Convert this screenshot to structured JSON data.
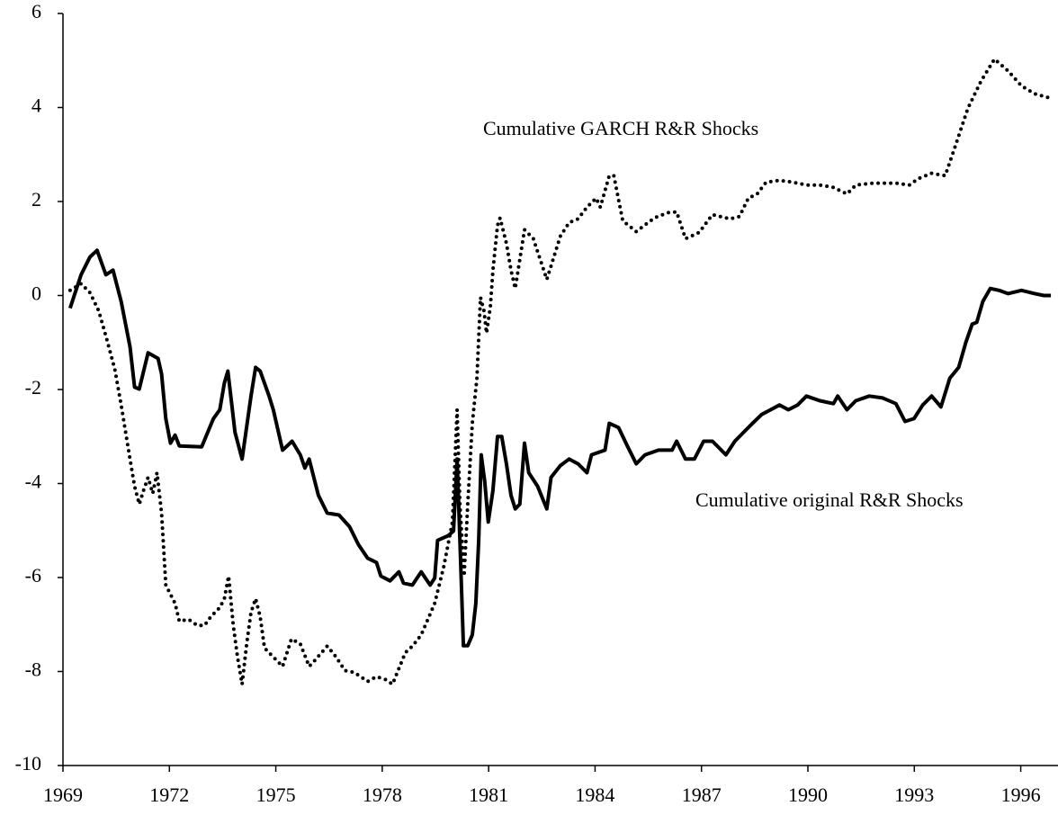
{
  "chart_data": {
    "type": "line",
    "xlim": [
      1969,
      1997
    ],
    "ylim": [
      -10,
      6
    ],
    "xticks": [
      1969,
      1972,
      1975,
      1978,
      1981,
      1984,
      1987,
      1990,
      1993,
      1996
    ],
    "yticks": [
      6,
      4,
      2,
      0,
      -2,
      -4,
      -6,
      -8,
      -10
    ],
    "annotations": [
      "Cumulative GARCH R&R Shocks",
      "Cumulative original R&R Shocks"
    ],
    "series": [
      {
        "name": "Cumulative original R&R Shocks",
        "color": "#000000",
        "style": "solid",
        "x": [
          1969.2,
          1969.51,
          1969.76,
          1969.96,
          1970.21,
          1970.41,
          1970.64,
          1970.89,
          1971.02,
          1971.15,
          1971.4,
          1971.68,
          1971.78,
          1971.9,
          1972.03,
          1972.16,
          1972.28,
          1972.91,
          1973.24,
          1973.42,
          1973.55,
          1973.65,
          1973.85,
          1974.05,
          1974.3,
          1974.43,
          1974.56,
          1974.81,
          1974.93,
          1975.19,
          1975.46,
          1975.69,
          1975.82,
          1975.94,
          1976.2,
          1976.45,
          1976.78,
          1977.08,
          1977.33,
          1977.59,
          1977.84,
          1977.96,
          1978.22,
          1978.47,
          1978.6,
          1978.85,
          1979.1,
          1979.35,
          1979.48,
          1979.56,
          1979.86,
          1980.01,
          1980.11,
          1980.19,
          1980.29,
          1980.41,
          1980.54,
          1980.64,
          1980.72,
          1980.79,
          1980.89,
          1980.99,
          1981.12,
          1981.25,
          1981.37,
          1981.5,
          1981.63,
          1981.75,
          1981.88,
          1982.01,
          1982.13,
          1982.38,
          1982.64,
          1982.76,
          1983.02,
          1983.27,
          1983.52,
          1983.77,
          1983.9,
          1984.28,
          1984.4,
          1984.66,
          1984.91,
          1985.16,
          1985.41,
          1985.79,
          1986.17,
          1986.3,
          1986.55,
          1986.8,
          1987.06,
          1987.31,
          1987.69,
          1987.94,
          1988.19,
          1988.44,
          1988.7,
          1988.95,
          1989.2,
          1989.45,
          1989.71,
          1989.96,
          1990.34,
          1990.72,
          1990.84,
          1991.1,
          1991.35,
          1991.73,
          1992.11,
          1992.48,
          1992.74,
          1992.99,
          1993.24,
          1993.49,
          1993.75,
          1994.0,
          1994.25,
          1994.45,
          1994.63,
          1994.76,
          1994.93,
          1995.14,
          1995.39,
          1995.64,
          1996.02,
          1996.4,
          1996.65,
          1996.85
        ],
        "values": [
          -0.27,
          0.44,
          0.82,
          0.96,
          0.44,
          0.54,
          -0.13,
          -1.09,
          -1.95,
          -1.99,
          -1.22,
          -1.34,
          -1.67,
          -2.62,
          -3.14,
          -2.97,
          -3.2,
          -3.22,
          -2.62,
          -2.43,
          -1.86,
          -1.61,
          -2.91,
          -3.48,
          -2.14,
          -1.53,
          -1.61,
          -2.14,
          -2.43,
          -3.29,
          -3.1,
          -3.39,
          -3.67,
          -3.48,
          -4.25,
          -4.63,
          -4.67,
          -4.92,
          -5.3,
          -5.59,
          -5.68,
          -5.97,
          -6.07,
          -5.88,
          -6.12,
          -6.16,
          -5.88,
          -6.16,
          -6.01,
          -5.21,
          -5.11,
          -5.01,
          -3.48,
          -5.21,
          -7.45,
          -7.45,
          -7.22,
          -6.55,
          -5.21,
          -3.39,
          -3.96,
          -4.82,
          -4.15,
          -3.0,
          -3.0,
          -3.58,
          -4.25,
          -4.54,
          -4.44,
          -3.14,
          -3.77,
          -4.06,
          -4.54,
          -3.87,
          -3.62,
          -3.48,
          -3.58,
          -3.77,
          -3.39,
          -3.29,
          -2.72,
          -2.81,
          -3.2,
          -3.58,
          -3.39,
          -3.29,
          -3.29,
          -3.1,
          -3.48,
          -3.48,
          -3.1,
          -3.1,
          -3.39,
          -3.1,
          -2.91,
          -2.72,
          -2.53,
          -2.43,
          -2.33,
          -2.43,
          -2.33,
          -2.14,
          -2.24,
          -2.3,
          -2.14,
          -2.43,
          -2.24,
          -2.14,
          -2.18,
          -2.3,
          -2.68,
          -2.62,
          -2.33,
          -2.14,
          -2.37,
          -1.76,
          -1.53,
          -1.0,
          -0.61,
          -0.57,
          -0.13,
          0.15,
          0.11,
          0.04,
          0.11,
          0.04,
          0.0,
          0.0
        ]
      },
      {
        "name": "Cumulative GARCH R&R Shocks",
        "color": "#000000",
        "style": "dotted",
        "x": [
          1969.2,
          1969.51,
          1969.76,
          1970.01,
          1970.26,
          1970.46,
          1970.64,
          1970.89,
          1971.02,
          1971.15,
          1971.27,
          1971.4,
          1971.53,
          1971.65,
          1971.78,
          1971.9,
          1972.16,
          1972.28,
          1972.54,
          1972.79,
          1972.99,
          1973.17,
          1973.42,
          1973.55,
          1973.67,
          1973.8,
          1973.92,
          1974.05,
          1974.18,
          1974.3,
          1974.43,
          1974.56,
          1974.68,
          1974.81,
          1975.06,
          1975.19,
          1975.44,
          1975.69,
          1975.94,
          1976.07,
          1976.45,
          1976.7,
          1976.95,
          1977.21,
          1977.59,
          1977.84,
          1978.09,
          1978.29,
          1978.65,
          1978.85,
          1979.1,
          1979.48,
          1979.73,
          1979.98,
          1980.11,
          1980.19,
          1980.31,
          1980.41,
          1980.54,
          1980.67,
          1980.77,
          1980.87,
          1980.94,
          1981.05,
          1981.12,
          1981.25,
          1981.32,
          1981.5,
          1981.63,
          1981.75,
          1982.01,
          1982.26,
          1982.64,
          1983.02,
          1983.27,
          1983.52,
          1983.77,
          1984.03,
          1984.15,
          1984.4,
          1984.53,
          1984.78,
          1985.16,
          1985.67,
          1986.05,
          1986.3,
          1986.55,
          1986.93,
          1987.31,
          1987.81,
          1988.07,
          1988.32,
          1988.57,
          1988.82,
          1989.2,
          1989.58,
          1989.96,
          1990.34,
          1990.72,
          1991.1,
          1991.35,
          1991.85,
          1992.48,
          1992.86,
          1993.12,
          1993.49,
          1993.87,
          1994.13,
          1994.51,
          1994.88,
          1995.26,
          1995.64,
          1996.02,
          1996.4,
          1996.78
        ],
        "values": [
          0.11,
          0.25,
          0.06,
          -0.33,
          -1.0,
          -1.57,
          -2.33,
          -3.48,
          -4.06,
          -4.44,
          -4.15,
          -3.87,
          -4.21,
          -3.77,
          -4.63,
          -6.16,
          -6.55,
          -6.93,
          -6.89,
          -7.02,
          -7.02,
          -6.83,
          -6.64,
          -6.45,
          -5.97,
          -7.02,
          -7.69,
          -8.27,
          -7.41,
          -6.74,
          -6.45,
          -6.83,
          -7.5,
          -7.6,
          -7.79,
          -7.89,
          -7.31,
          -7.41,
          -7.89,
          -7.79,
          -7.46,
          -7.69,
          -7.98,
          -8.02,
          -8.21,
          -8.11,
          -8.17,
          -8.27,
          -7.6,
          -7.46,
          -7.22,
          -6.55,
          -5.78,
          -4.82,
          -2.43,
          -4.44,
          -5.97,
          -4.44,
          -2.72,
          -1.76,
          -0.04,
          -0.33,
          -0.8,
          -0.23,
          0.54,
          1.49,
          1.65,
          1.11,
          0.54,
          0.15,
          1.4,
          1.21,
          0.34,
          1.26,
          1.55,
          1.63,
          1.88,
          2.07,
          1.88,
          2.55,
          2.55,
          1.59,
          1.36,
          1.65,
          1.76,
          1.78,
          1.21,
          1.34,
          1.72,
          1.63,
          1.68,
          2.07,
          2.16,
          2.41,
          2.45,
          2.41,
          2.35,
          2.35,
          2.3,
          2.16,
          2.35,
          2.39,
          2.39,
          2.35,
          2.49,
          2.6,
          2.55,
          3.12,
          3.98,
          4.56,
          5.03,
          4.78,
          4.46,
          4.29,
          4.21
        ]
      }
    ]
  }
}
